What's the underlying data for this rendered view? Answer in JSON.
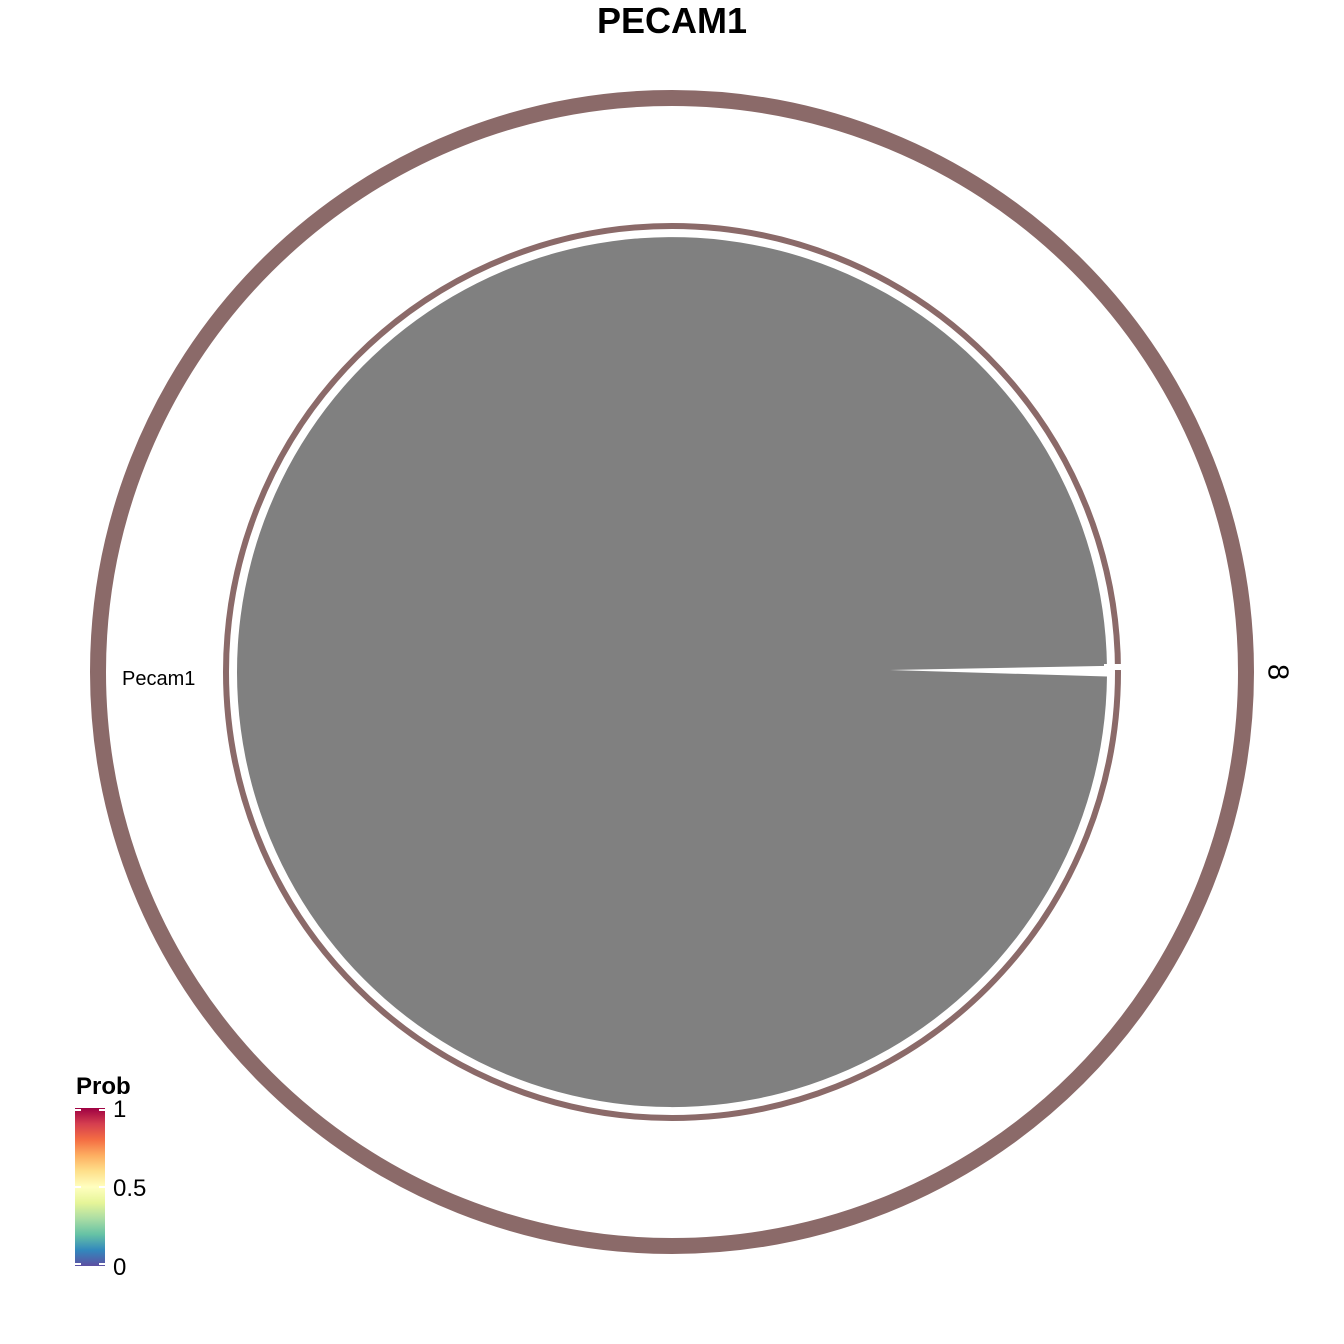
{
  "chart_data": {
    "type": "chord",
    "title": "PECAM1",
    "sectors": [
      {
        "name": "8",
        "color": "#8B6A69"
      }
    ],
    "links": [
      {
        "from": "8",
        "to": "8",
        "ligand": "Pecam1",
        "receptor": "Pecam1",
        "color": "#808080"
      }
    ],
    "gene_labels": [
      "Pecam1"
    ],
    "legend": {
      "title": "Prob",
      "ticks": [
        "0",
        "0.5",
        "1"
      ],
      "tick_values": [
        0,
        0.5,
        1
      ],
      "range": [
        0,
        1
      ],
      "colors": [
        "#5E4FA2",
        "#3288BD",
        "#66C2A5",
        "#ABDDA4",
        "#E6F598",
        "#FFFFBF",
        "#FEE08B",
        "#FDAE61",
        "#F46D43",
        "#D53E4F",
        "#9E0142"
      ],
      "position": "bottom-left"
    }
  }
}
